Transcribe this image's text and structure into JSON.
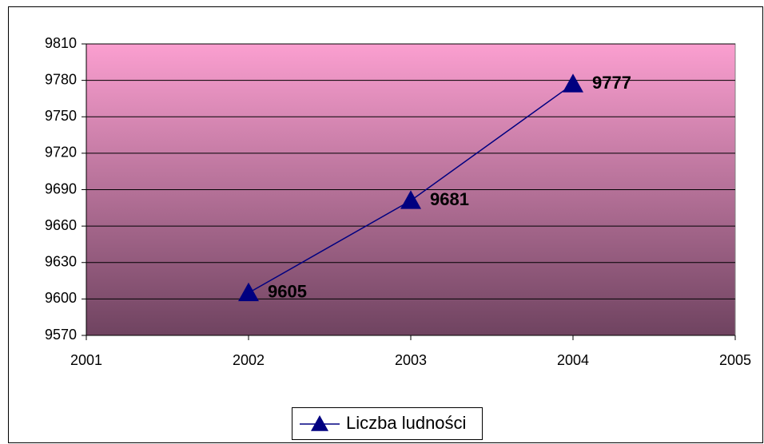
{
  "chart_data": {
    "type": "line",
    "x": [
      2002,
      2003,
      2004
    ],
    "series": [
      {
        "name": "Liczba ludności",
        "color": "#000080",
        "values": [
          9605,
          9681,
          9777
        ]
      }
    ],
    "xlim": [
      2001,
      2005
    ],
    "xticks": [
      2001,
      2002,
      2003,
      2004,
      2005
    ],
    "ylim": [
      9570,
      9810
    ],
    "yticks": [
      9570,
      9600,
      9630,
      9660,
      9690,
      9720,
      9750,
      9780,
      9810
    ],
    "grid": true,
    "legend": "bottom",
    "data_labels": true,
    "background": [
      "#fb9fd0",
      "#6f4360"
    ]
  }
}
